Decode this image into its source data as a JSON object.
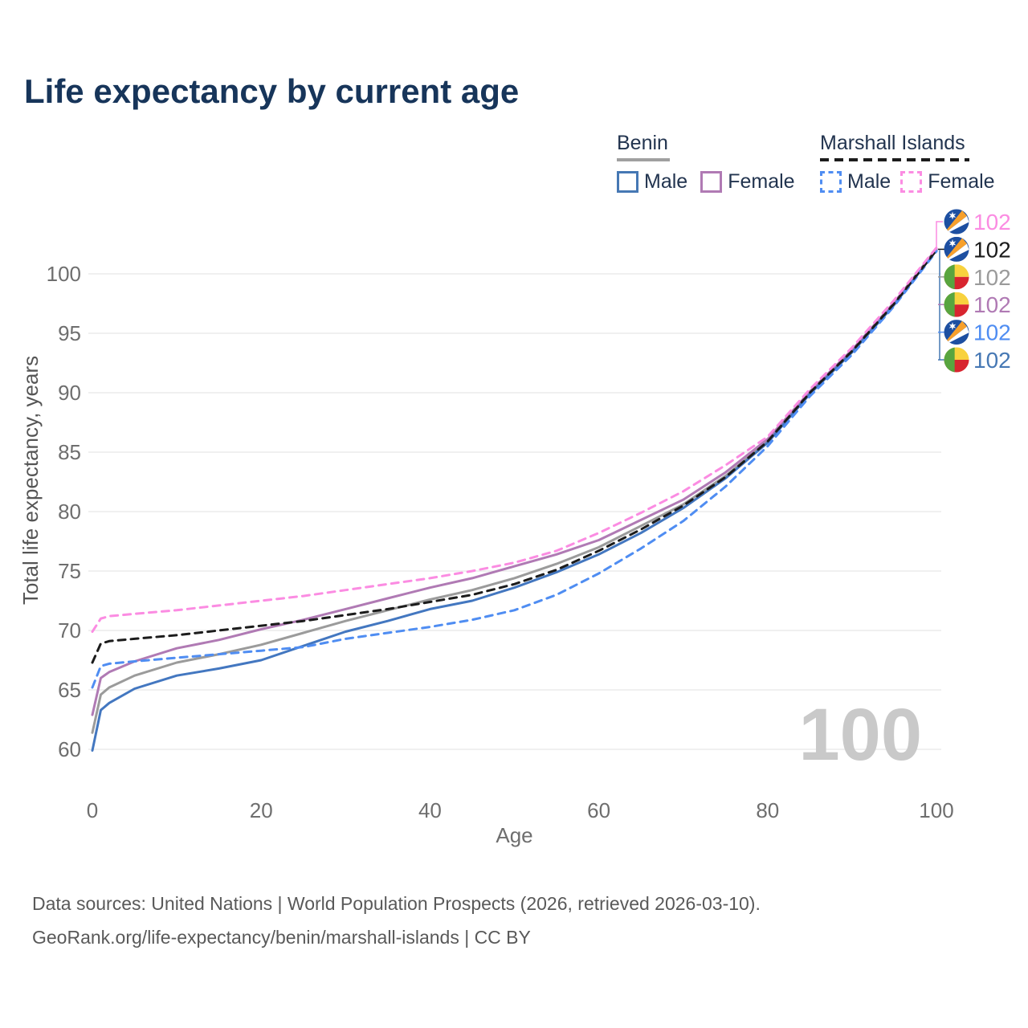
{
  "title": "Life expectancy by current age",
  "legend": {
    "groups": [
      {
        "label": "Benin",
        "line_style": "solid",
        "underline_color": "#a0a0a0",
        "items": [
          {
            "label": "Male",
            "color": "#4377c0",
            "dashed": false
          },
          {
            "label": "Female",
            "color": "#b07ab4",
            "dashed": false
          }
        ]
      },
      {
        "label": "Marshall Islands",
        "line_style": "dashed",
        "underline_color": "#1c1c1c",
        "items": [
          {
            "label": "Male",
            "color": "#4f8df2",
            "dashed": true
          },
          {
            "label": "Female",
            "color": "#fb8ce2",
            "dashed": true
          }
        ]
      }
    ]
  },
  "watermark": "100",
  "footer": {
    "line1": "Data sources: United Nations | World Population Prospects (2026, retrieved 2026-03-10).",
    "line2": "GeoRank.org/life-expectancy/benin/marshall-islands | CC BY"
  },
  "chart_data": {
    "type": "line",
    "title": "Life expectancy by current age",
    "xlabel": "Age",
    "ylabel": "Total life expectancy, years",
    "xlim": [
      0,
      100
    ],
    "ylim": [
      58,
      104
    ],
    "xticks": [
      0,
      20,
      40,
      60,
      80,
      100
    ],
    "yticks": [
      60,
      65,
      70,
      75,
      80,
      85,
      90,
      95,
      100
    ],
    "grid": "horizontal",
    "legend_position": "top-right",
    "ages": [
      0,
      1,
      2,
      5,
      10,
      15,
      20,
      25,
      30,
      35,
      40,
      45,
      50,
      55,
      60,
      65,
      70,
      75,
      80,
      85,
      90,
      95,
      100
    ],
    "series": [
      {
        "name": "benin-total",
        "country": "Benin",
        "sex": "Total",
        "color": "#9b9b9b",
        "dashed": false,
        "values": [
          61.4,
          64.6,
          65.2,
          66.2,
          67.3,
          68.0,
          68.8,
          69.8,
          70.8,
          71.7,
          72.6,
          73.4,
          74.4,
          75.6,
          77.0,
          78.8,
          80.6,
          83.0,
          85.9,
          90.0,
          93.5,
          97.5,
          102.0
        ]
      },
      {
        "name": "benin-female",
        "country": "Benin",
        "sex": "Female",
        "color": "#b07ab4",
        "dashed": false,
        "values": [
          62.9,
          66.0,
          66.5,
          67.4,
          68.5,
          69.2,
          70.1,
          70.9,
          71.8,
          72.7,
          73.6,
          74.4,
          75.4,
          76.4,
          77.6,
          79.3,
          81.0,
          83.3,
          86.1,
          90.1,
          93.6,
          97.6,
          102.1
        ]
      },
      {
        "name": "benin-male",
        "country": "Benin",
        "sex": "Male",
        "color": "#4377c0",
        "dashed": false,
        "values": [
          59.9,
          63.3,
          63.9,
          65.1,
          66.2,
          66.8,
          67.5,
          68.7,
          69.9,
          70.8,
          71.8,
          72.5,
          73.6,
          74.9,
          76.4,
          78.2,
          80.3,
          82.8,
          85.8,
          89.9,
          93.4,
          97.4,
          102.0
        ]
      },
      {
        "name": "marshall-islands-male",
        "country": "Marshall Islands",
        "sex": "Male",
        "color": "#4f8df2",
        "dashed": true,
        "values": [
          65.2,
          67.0,
          67.2,
          67.4,
          67.7,
          68.0,
          68.3,
          68.6,
          69.3,
          69.8,
          70.3,
          70.9,
          71.7,
          73.0,
          74.8,
          76.9,
          79.2,
          82.1,
          85.5,
          89.7,
          93.2,
          97.3,
          101.9
        ]
      },
      {
        "name": "marshall-islands-total",
        "country": "Marshall Islands",
        "sex": "Total",
        "color": "#1c1c1c",
        "dashed": true,
        "values": [
          67.3,
          68.9,
          69.1,
          69.3,
          69.6,
          70.0,
          70.4,
          70.8,
          71.3,
          71.8,
          72.4,
          73.0,
          73.9,
          75.1,
          76.7,
          78.5,
          80.5,
          82.9,
          85.9,
          90.0,
          93.5,
          97.5,
          102.0
        ]
      },
      {
        "name": "marshall-islands-female",
        "country": "Marshall Islands",
        "sex": "Female",
        "color": "#fb8ce2",
        "dashed": true,
        "values": [
          69.9,
          71.0,
          71.2,
          71.4,
          71.7,
          72.1,
          72.5,
          72.9,
          73.4,
          73.9,
          74.4,
          75.0,
          75.7,
          76.7,
          78.2,
          79.9,
          81.7,
          83.9,
          86.3,
          90.3,
          93.8,
          97.8,
          102.2
        ]
      }
    ],
    "end_labels": [
      {
        "series": "marshall-islands-female",
        "flag": "marshall-islands",
        "value": "102",
        "color": "#fb8ce2"
      },
      {
        "series": "marshall-islands-total",
        "flag": "marshall-islands",
        "value": "102",
        "color": "#1c1c1c"
      },
      {
        "series": "benin-total",
        "flag": "benin",
        "value": "102",
        "color": "#9b9b9b"
      },
      {
        "series": "benin-female",
        "flag": "benin",
        "value": "102",
        "color": "#b07ab4"
      },
      {
        "series": "marshall-islands-male",
        "flag": "marshall-islands",
        "value": "102",
        "color": "#4f8df2"
      },
      {
        "series": "benin-male",
        "flag": "benin",
        "value": "102",
        "color": "#4678b4"
      }
    ],
    "flag_colors": {
      "benin": {
        "green": "#58a53f",
        "yellow": "#f8d23e",
        "red": "#d8252f"
      },
      "marshall-islands": {
        "blue": "#1d4fa1",
        "orange": "#f7a02c",
        "white": "#ffffff"
      }
    }
  }
}
